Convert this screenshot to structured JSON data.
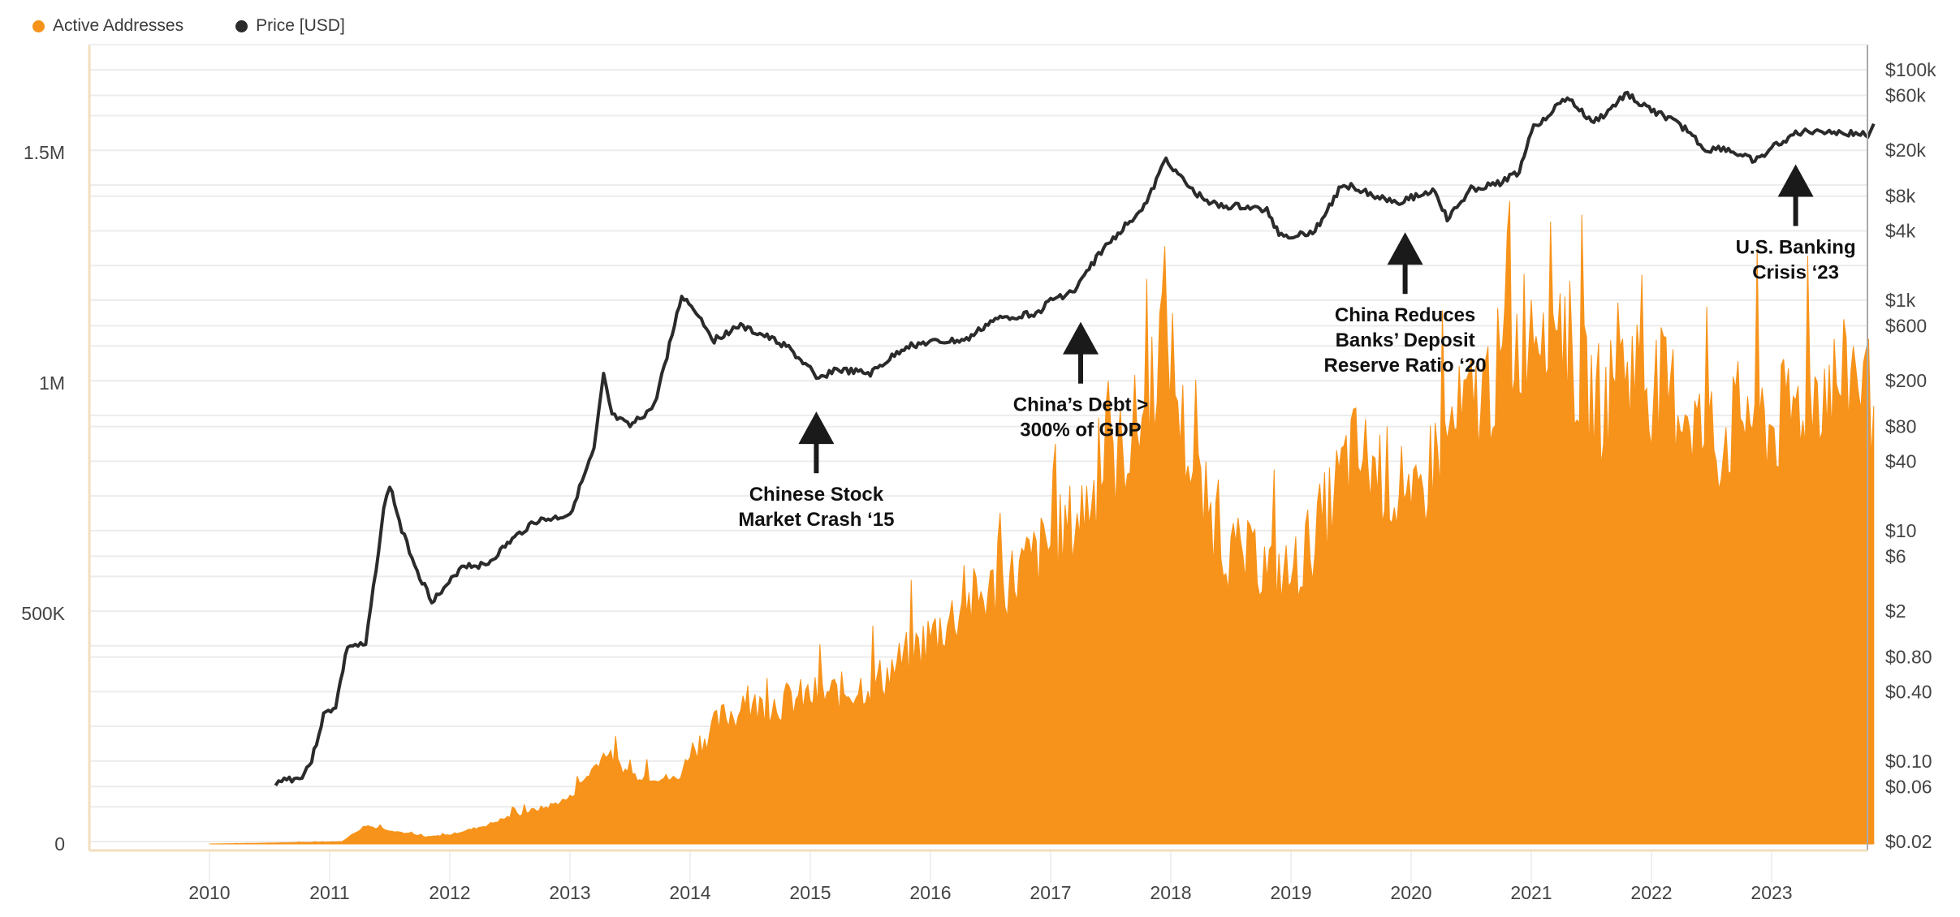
{
  "legend": [
    {
      "label": "Active Addresses",
      "color": "#F7931A"
    },
    {
      "label": "Price [USD]",
      "color": "#2b2b2b"
    }
  ],
  "chart_data": {
    "type": "area",
    "title": "",
    "xlabel": "",
    "ylabel_left": "Active Addresses",
    "ylabel_right": "Price [USD]",
    "x_range": [
      2009.0,
      2023.85
    ],
    "x_ticks": [
      "2010",
      "2011",
      "2012",
      "2013",
      "2014",
      "2015",
      "2016",
      "2017",
      "2018",
      "2019",
      "2020",
      "2021",
      "2022",
      "2023"
    ],
    "y_left": {
      "range": [
        0,
        1750000
      ],
      "ticks": [
        0,
        500000,
        1000000,
        1500000
      ],
      "tick_labels": [
        "0",
        "500K",
        "1M",
        "1.5M"
      ]
    },
    "y_right": {
      "scale": "log",
      "range": [
        0.02,
        100000
      ],
      "ticks": [
        0.02,
        0.06,
        0.1,
        0.4,
        0.8,
        2,
        6,
        10,
        40,
        80,
        200,
        600,
        1000,
        4000,
        8000,
        20000,
        60000,
        100000
      ],
      "tick_labels": [
        "$0.02",
        "$0.06",
        "$0.10",
        "$0.40",
        "$0.80",
        "$2",
        "$6",
        "$10",
        "$40",
        "$80",
        "$200",
        "$600",
        "$1k",
        "$4k",
        "$8k",
        "$20k",
        "$60k",
        "$100k"
      ]
    },
    "grid": true,
    "legend_position": "top-left",
    "series": [
      {
        "name": "Active Addresses",
        "type": "area",
        "color": "#F7931A",
        "x": [
          2010.0,
          2010.5,
          2011.1,
          2011.3,
          2011.5,
          2011.8,
          2012.0,
          2012.3,
          2012.5,
          2012.8,
          2013.0,
          2013.3,
          2013.5,
          2013.9,
          2014.0,
          2014.3,
          2014.6,
          2015.0,
          2015.3,
          2015.6,
          2016.0,
          2016.3,
          2016.6,
          2017.0,
          2017.2,
          2017.4,
          2017.6,
          2017.8,
          2017.95,
          2018.1,
          2018.25,
          2018.5,
          2018.8,
          2019.0,
          2019.3,
          2019.5,
          2019.8,
          2020.0,
          2020.2,
          2020.5,
          2020.8,
          2021.0,
          2021.2,
          2021.4,
          2021.6,
          2021.8,
          2022.0,
          2022.3,
          2022.5,
          2022.8,
          2023.0,
          2023.2,
          2023.4,
          2023.6,
          2023.7,
          2023.85
        ],
        "values": [
          0,
          2000,
          5000,
          40000,
          30000,
          15000,
          20000,
          40000,
          60000,
          80000,
          100000,
          200000,
          150000,
          140000,
          200000,
          280000,
          300000,
          320000,
          330000,
          360000,
          450000,
          520000,
          560000,
          650000,
          700000,
          780000,
          850000,
          950000,
          1150000,
          900000,
          750000,
          630000,
          600000,
          580000,
          720000,
          850000,
          800000,
          700000,
          850000,
          950000,
          1050000,
          1150000,
          1200000,
          1000000,
          950000,
          1050000,
          1000000,
          950000,
          850000,
          950000,
          900000,
          950000,
          1000000,
          1000000,
          1050000,
          950000
        ]
      },
      {
        "name": "Price [USD]",
        "type": "line",
        "color": "#2b2b2b",
        "x": [
          2010.55,
          2010.6,
          2010.75,
          2010.85,
          2010.95,
          2011.05,
          2011.15,
          2011.3,
          2011.45,
          2011.5,
          2011.6,
          2011.75,
          2011.85,
          2011.95,
          2012.1,
          2012.3,
          2012.5,
          2012.7,
          2012.9,
          2013.0,
          2013.2,
          2013.28,
          2013.35,
          2013.5,
          2013.7,
          2013.85,
          2013.93,
          2014.05,
          2014.2,
          2014.4,
          2014.6,
          2014.8,
          2015.0,
          2015.05,
          2015.2,
          2015.5,
          2015.8,
          2016.0,
          2016.3,
          2016.5,
          2016.6,
          2016.9,
          2017.0,
          2017.2,
          2017.4,
          2017.6,
          2017.8,
          2017.96,
          2018.1,
          2018.2,
          2018.4,
          2018.6,
          2018.8,
          2018.9,
          2019.0,
          2019.2,
          2019.4,
          2019.5,
          2019.7,
          2019.9,
          2020.2,
          2020.3,
          2020.5,
          2020.7,
          2020.9,
          2021.0,
          2021.3,
          2021.5,
          2021.6,
          2021.8,
          2021.9,
          2022.1,
          2022.3,
          2022.45,
          2022.6,
          2022.8,
          2022.9,
          2023.0,
          2023.2,
          2023.4,
          2023.6,
          2023.8,
          2023.85
        ],
        "values": [
          0.06,
          0.07,
          0.07,
          0.1,
          0.25,
          0.3,
          1,
          1,
          15,
          25,
          10,
          4,
          2.5,
          3,
          5,
          5,
          8,
          12,
          13,
          14,
          50,
          220,
          100,
          80,
          120,
          500,
          1100,
          800,
          450,
          600,
          500,
          400,
          250,
          200,
          250,
          230,
          400,
          430,
          450,
          650,
          700,
          780,
          1000,
          1200,
          2500,
          4200,
          7000,
          17000,
          11000,
          8500,
          6500,
          6500,
          6000,
          3800,
          3600,
          4000,
          9000,
          10000,
          8000,
          7200,
          9000,
          5000,
          9200,
          10000,
          13000,
          30000,
          58000,
          35000,
          40000,
          63000,
          50000,
          40000,
          30000,
          20000,
          21000,
          17000,
          16500,
          21000,
          28000,
          30000,
          28000,
          27500,
          34000
        ]
      }
    ],
    "annotations": [
      {
        "text": [
          "Chinese Stock",
          "Market Crash ‘15"
        ],
        "x": 2015.05,
        "price_ref": 200
      },
      {
        "text": [
          "China’s Debt >",
          "300% of GDP"
        ],
        "x": 2017.25,
        "price_ref": 1200
      },
      {
        "text": [
          "China Reduces",
          "Banks’ Deposit",
          "Reserve Ratio ‘20"
        ],
        "x": 2019.95,
        "price_ref": 7200
      },
      {
        "text": [
          "U.S. Banking",
          "Crisis ‘23"
        ],
        "x": 2023.2,
        "price_ref": 28000
      }
    ]
  }
}
